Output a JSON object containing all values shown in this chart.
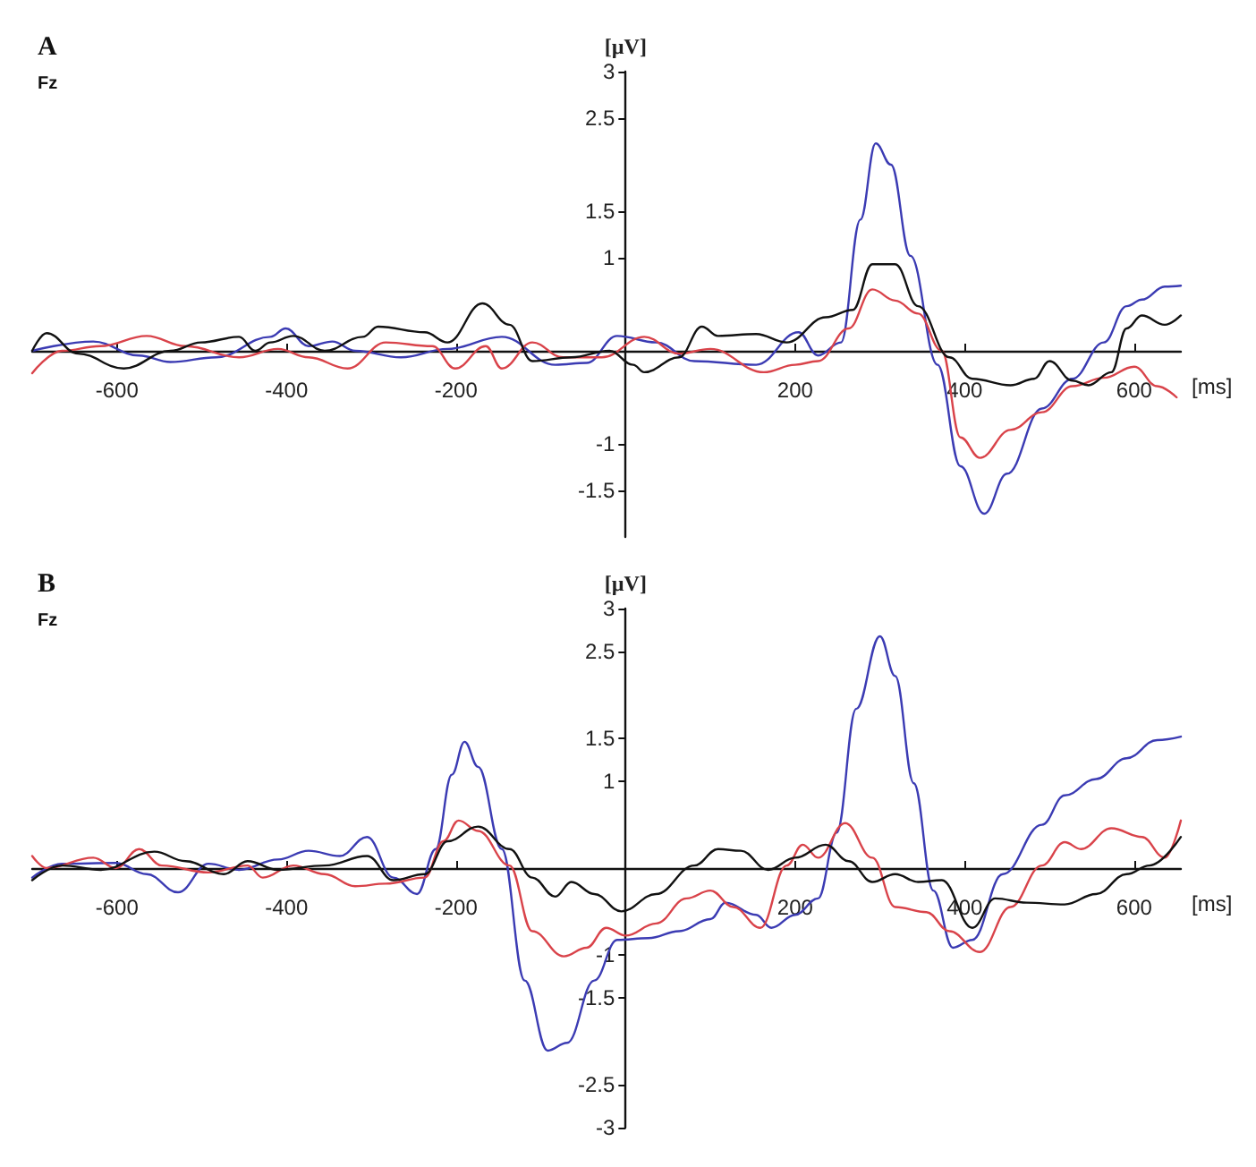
{
  "chart_data": [
    {
      "type": "line",
      "title": "A",
      "subtitle": "Fz",
      "xlabel": "[ms]",
      "ylabel": "[µV]",
      "xlim": [
        -700,
        655
      ],
      "ylim": [
        -2,
        3
      ],
      "xticks": [
        -600,
        -400,
        -200,
        200,
        400,
        600
      ],
      "yticks": [
        -1.5,
        -1,
        1,
        1.5,
        2.5,
        3
      ],
      "grid": false,
      "marker": "none",
      "line_style": "solid",
      "series": [
        {
          "color": "#3b3bb3",
          "x": [
            -700,
            -628,
            -574,
            -537,
            -483,
            -419,
            -401,
            -374,
            -346,
            -319,
            -265,
            -210,
            -146,
            -83,
            -46,
            -10,
            36,
            81,
            154,
            204,
            227,
            254,
            277,
            295,
            313,
            336,
            368,
            395,
            423,
            450,
            491,
            527,
            564,
            591,
            609,
            636,
            655
          ],
          "values": [
            0,
            0.1,
            -0.05,
            -0.12,
            -0.07,
            0.15,
            0.24,
            0.05,
            0.1,
            0,
            -0.07,
            0.02,
            0.15,
            -0.15,
            -0.13,
            0.16,
            0.09,
            -0.11,
            -0.15,
            0.2,
            -0.05,
            0.09,
            1.41,
            2.23,
            2.0,
            1.02,
            -0.15,
            -1.24,
            -1.75,
            -1.32,
            -0.62,
            -0.3,
            0.09,
            0.48,
            0.55,
            0.69,
            0.7
          ]
        },
        {
          "color": "#d9434a",
          "x": [
            -700,
            -665,
            -620,
            -565,
            -519,
            -456,
            -410,
            -374,
            -328,
            -283,
            -228,
            -201,
            -165,
            -146,
            -110,
            -74,
            -28,
            22,
            63,
            100,
            163,
            200,
            227,
            263,
            291,
            318,
            345,
            373,
            395,
            418,
            454,
            491,
            527,
            564,
            600,
            627,
            650
          ],
          "values": [
            -0.24,
            0,
            0.05,
            0.16,
            0.05,
            -0.07,
            0.02,
            -0.07,
            -0.19,
            0.09,
            0.05,
            -0.19,
            0.05,
            -0.19,
            0.09,
            -0.07,
            -0.07,
            0.15,
            -0.03,
            0.02,
            -0.23,
            -0.15,
            -0.11,
            0.24,
            0.66,
            0.54,
            0.4,
            0,
            -0.93,
            -1.15,
            -0.85,
            -0.66,
            -0.38,
            -0.29,
            -0.17,
            -0.38,
            -0.5
          ]
        },
        {
          "color": "#111111",
          "x": [
            -700,
            -683,
            -646,
            -592,
            -537,
            -501,
            -456,
            -437,
            -419,
            -392,
            -355,
            -310,
            -292,
            -237,
            -210,
            -169,
            -137,
            -110,
            -64,
            -19,
            9,
            22,
            63,
            90,
            109,
            154,
            190,
            236,
            268,
            291,
            318,
            345,
            382,
            409,
            454,
            482,
            500,
            527,
            546,
            573,
            591,
            609,
            636,
            655
          ],
          "values": [
            0,
            0.19,
            -0.03,
            -0.19,
            0,
            0.09,
            0.15,
            0,
            0.09,
            0.16,
            0,
            0.15,
            0.26,
            0.2,
            0.09,
            0.51,
            0.28,
            -0.11,
            -0.07,
            0,
            -0.15,
            -0.23,
            -0.07,
            0.26,
            0.16,
            0.18,
            0.09,
            0.36,
            0.44,
            0.93,
            0.93,
            0.48,
            -0.07,
            -0.3,
            -0.37,
            -0.3,
            -0.11,
            -0.32,
            -0.37,
            -0.23,
            0.24,
            0.38,
            0.28,
            0.38
          ]
        }
      ]
    },
    {
      "type": "line",
      "title": "B",
      "subtitle": "Fz",
      "xlabel": "[ms]",
      "ylabel": "[µV]",
      "xlim": [
        -700,
        655
      ],
      "ylim": [
        -3,
        3
      ],
      "xticks": [
        -600,
        -400,
        -200,
        200,
        400,
        600
      ],
      "yticks": [
        -3,
        -2.5,
        -1.5,
        -1,
        1,
        1.5,
        2.5,
        3
      ],
      "grid": false,
      "marker": "none",
      "line_style": "solid",
      "series": [
        {
          "color": "#3b3bb3",
          "x": [
            -700,
            -665,
            -601,
            -565,
            -528,
            -492,
            -456,
            -410,
            -374,
            -337,
            -305,
            -274,
            -246,
            -224,
            -205,
            -190,
            -174,
            -146,
            -119,
            -92,
            -69,
            -37,
            -10,
            27,
            63,
            100,
            118,
            154,
            172,
            200,
            227,
            249,
            272,
            300,
            318,
            340,
            363,
            386,
            409,
            445,
            491,
            518,
            555,
            591,
            627,
            655
          ],
          "values": [
            -0.11,
            0.05,
            0.06,
            -0.07,
            -0.28,
            0.05,
            -0.02,
            0.1,
            0.2,
            0.14,
            0.36,
            -0.11,
            -0.3,
            0.22,
            1.08,
            1.46,
            1.17,
            0.22,
            -1.3,
            -2.11,
            -2.02,
            -1.3,
            -0.83,
            -0.81,
            -0.73,
            -0.59,
            -0.4,
            -0.54,
            -0.69,
            -0.54,
            -0.35,
            0.41,
            1.84,
            2.68,
            2.22,
            0.98,
            -0.26,
            -0.92,
            -0.83,
            -0.07,
            0.5,
            0.84,
            1.03,
            1.27,
            1.48,
            1.52
          ]
        },
        {
          "color": "#d9434a",
          "x": [
            -700,
            -683,
            -628,
            -601,
            -574,
            -547,
            -492,
            -446,
            -428,
            -392,
            -355,
            -319,
            -283,
            -237,
            -215,
            -197,
            -174,
            -137,
            -110,
            -73,
            -46,
            -23,
            0,
            36,
            72,
            100,
            127,
            159,
            190,
            209,
            227,
            259,
            291,
            318,
            355,
            382,
            418,
            454,
            491,
            518,
            537,
            573,
            609,
            636,
            655
          ],
          "values": [
            0.14,
            0,
            0.12,
            0,
            0.22,
            0.03,
            -0.05,
            0.03,
            -0.11,
            0.03,
            -0.07,
            -0.21,
            -0.18,
            -0.11,
            0.31,
            0.55,
            0.43,
            0.03,
            -0.73,
            -1.02,
            -0.92,
            -0.69,
            -0.78,
            -0.64,
            -0.35,
            -0.26,
            -0.45,
            -0.69,
            0.03,
            0.27,
            0.12,
            0.52,
            0.12,
            -0.45,
            -0.51,
            -0.73,
            -0.97,
            -0.45,
            0.03,
            0.3,
            0.22,
            0.46,
            0.36,
            0.12,
            0.55
          ]
        },
        {
          "color": "#111111",
          "x": [
            -700,
            -665,
            -619,
            -556,
            -519,
            -474,
            -446,
            -410,
            -355,
            -305,
            -274,
            -237,
            -210,
            -174,
            -137,
            -110,
            -83,
            -64,
            -37,
            -5,
            36,
            81,
            109,
            136,
            168,
            200,
            236,
            263,
            291,
            318,
            345,
            373,
            409,
            436,
            473,
            518,
            555,
            591,
            618,
            655
          ],
          "values": [
            -0.14,
            0.03,
            -0.02,
            0.19,
            0.08,
            -0.07,
            0.08,
            -0.02,
            0.03,
            0.14,
            -0.14,
            -0.07,
            0.31,
            0.48,
            0.22,
            -0.11,
            -0.33,
            -0.16,
            -0.3,
            -0.5,
            -0.3,
            0.03,
            0.22,
            0.2,
            -0.02,
            0.12,
            0.27,
            0.08,
            -0.16,
            -0.07,
            -0.16,
            -0.14,
            -0.69,
            -0.35,
            -0.4,
            -0.42,
            -0.3,
            -0.07,
            0.03,
            0.36
          ]
        }
      ]
    }
  ]
}
